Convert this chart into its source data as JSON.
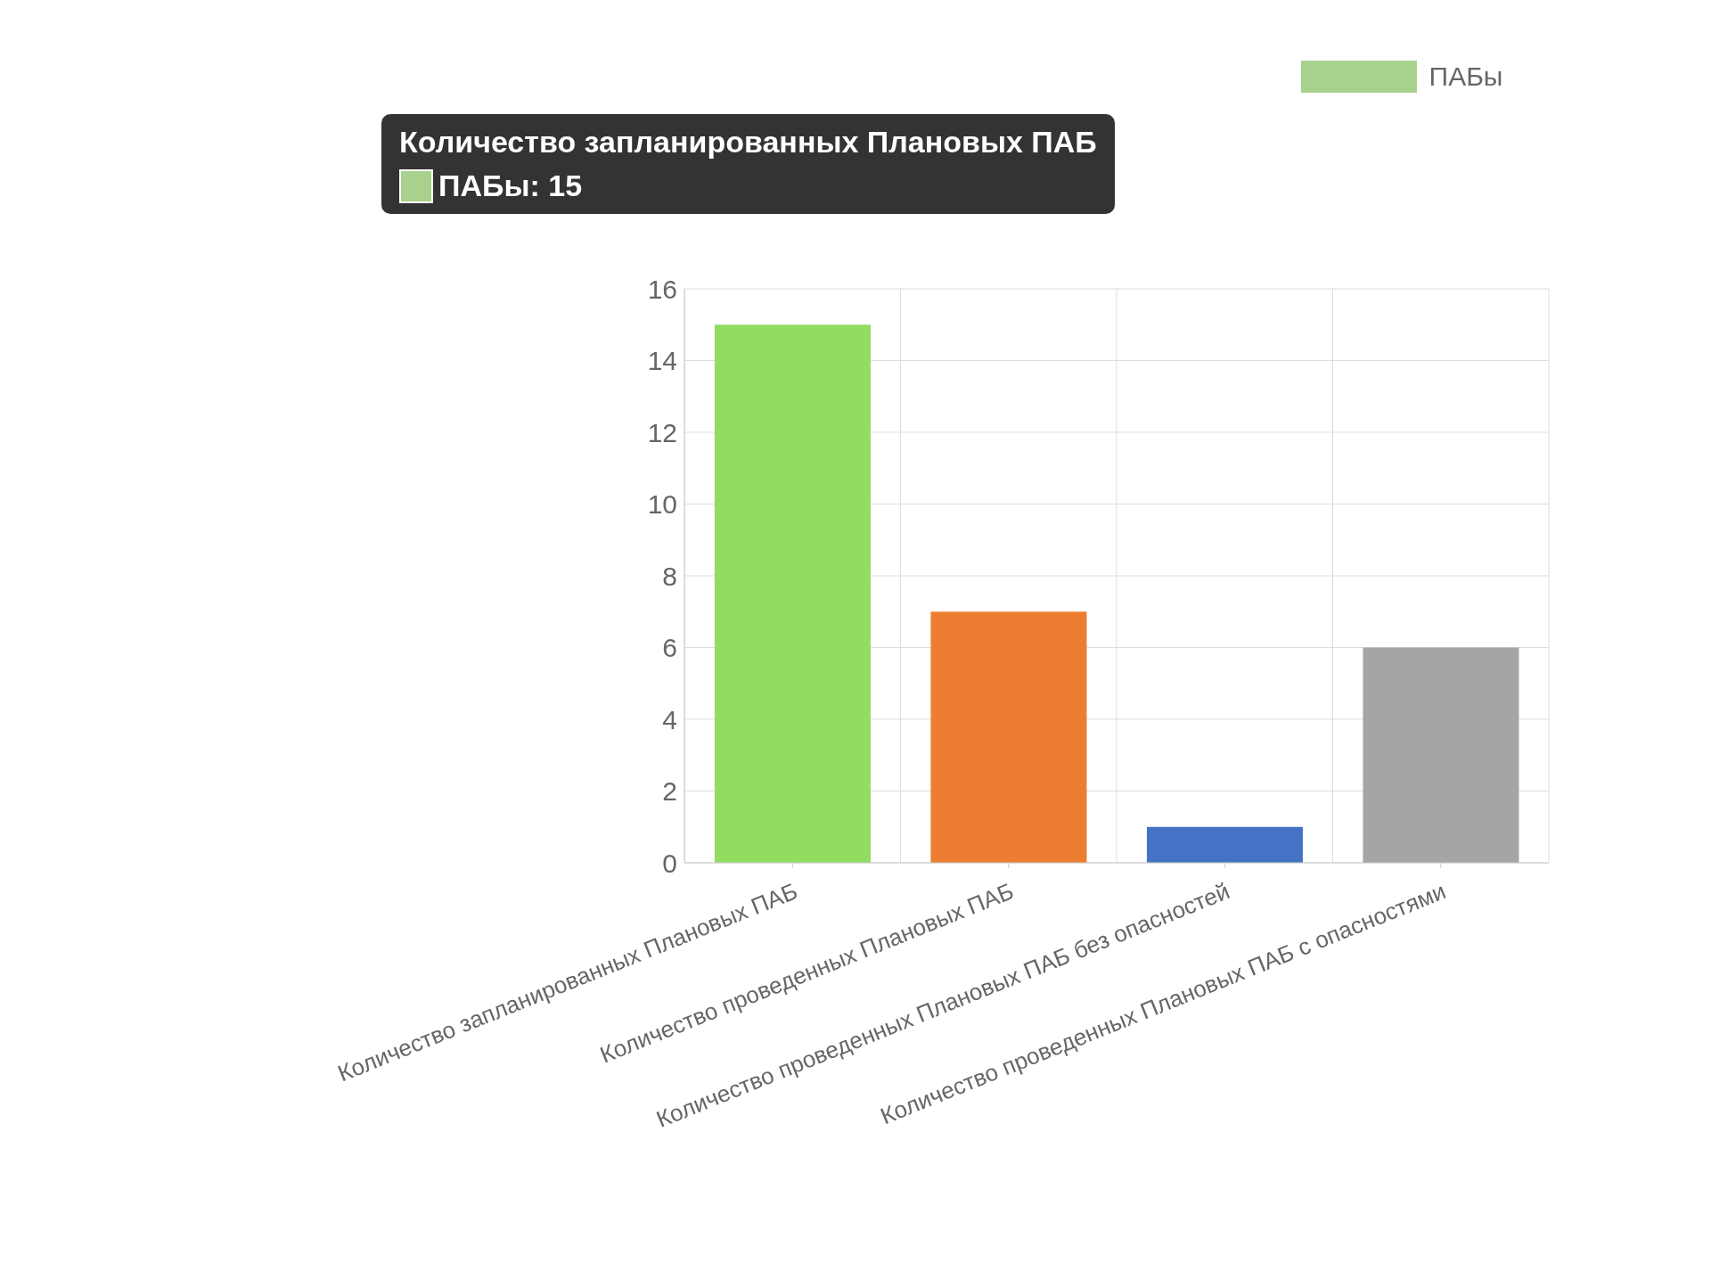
{
  "chart_data": {
    "type": "bar",
    "categories": [
      "Количество запланированных Плановых ПАБ",
      "Количество проведенных Плановых ПАБ",
      "Количество проведенных Плановых ПАБ без опасностей",
      "Количество проведенных Плановых ПАБ с опасностями"
    ],
    "series": [
      {
        "name": "ПАБы",
        "color": "#a9d18e",
        "colors": [
          "#92dc60",
          "#ed7d31",
          "#4472c4",
          "#a5a5a5"
        ],
        "values": [
          15,
          7,
          1,
          6
        ]
      }
    ],
    "ylim": [
      0,
      16
    ],
    "yticks": [
      0,
      2,
      4,
      6,
      8,
      10,
      12,
      14,
      16
    ],
    "grid": true,
    "legend": "top",
    "annotations": [
      "Количество запланированных Плановых ПАБ",
      "ПАБы: 15"
    ]
  }
}
